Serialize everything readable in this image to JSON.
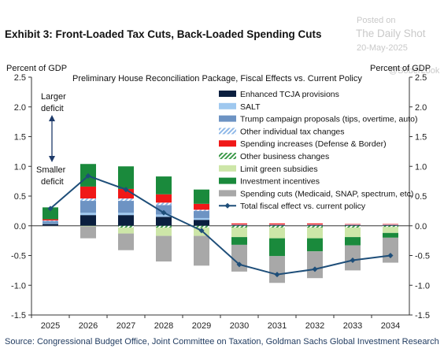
{
  "header": {
    "title": "Exhibit 3: Front-Loaded Tax Cuts, Back-Loaded Spending Cuts",
    "watermark": {
      "posted_on": "Posted on",
      "brand": "The Daily Shot",
      "date": "20-May-2025",
      "handle": "@SoberLook"
    }
  },
  "footer": {
    "source": "Source: Congressional Budget Office, Joint Committee on Taxation, Goldman Sachs Global Investment Research"
  },
  "annotations": {
    "larger_deficit": [
      "Larger",
      "deficit"
    ],
    "smaller_deficit": [
      "Smaller",
      "deficit"
    ]
  },
  "chart_data": {
    "type": "bar",
    "subtitle": "Preliminary House Reconciliation Package, Fiscal Effects vs. Current Policy",
    "ylabel_left": "Percent of GDP",
    "ylabel_right": "Percent of GDP",
    "ylim": [
      -1.5,
      2.5
    ],
    "yticks": [
      2.5,
      2.0,
      1.5,
      1.0,
      0.5,
      0.0,
      -0.5,
      -1.0,
      -1.5
    ],
    "ytick_labels": [
      "2.5",
      "2.0",
      "1.5",
      "1.0",
      "0.5",
      "0.0",
      "-0.5",
      "-1.0",
      "-1.5"
    ],
    "categories": [
      "2025",
      "2026",
      "2027",
      "2028",
      "2029",
      "2030",
      "2031",
      "2032",
      "2033",
      "2034"
    ],
    "legend_position": "top-right",
    "stacked": true,
    "series": [
      {
        "name": "Enhanced TCJA provisions",
        "color": "#0b1f3f",
        "pattern": "solid",
        "values": [
          0.03,
          0.18,
          0.18,
          0.15,
          0.1,
          0.01,
          0.01,
          0.01,
          0.01,
          0.01
        ]
      },
      {
        "name": "SALT",
        "color": "#9fc8ef",
        "pattern": "solid",
        "values": [
          0.01,
          0.04,
          0.04,
          0.04,
          0.03,
          0.01,
          0.01,
          0.01,
          0.01,
          0.01
        ]
      },
      {
        "name": "Trump campaign proposals (tips, overtime, auto)",
        "color": "#6d93c3",
        "pattern": "solid",
        "values": [
          0.04,
          0.2,
          0.2,
          0.16,
          0.12,
          0.0,
          0.0,
          0.0,
          0.0,
          0.0
        ]
      },
      {
        "name": "Other individual tax changes",
        "color": "#8fb8e8",
        "pattern": "hatch",
        "values": [
          0.01,
          0.04,
          0.04,
          0.04,
          0.02,
          0.0,
          0.0,
          0.0,
          0.0,
          0.0
        ]
      },
      {
        "name": "Spending increases (Defense & Border)",
        "color": "#f01818",
        "pattern": "solid",
        "values": [
          0.02,
          0.2,
          0.16,
          0.14,
          0.1,
          0.02,
          0.02,
          0.02,
          0.01,
          0.01
        ]
      },
      {
        "name": "Other business changes",
        "color": "#3d9a4a",
        "pattern": "hatch",
        "values": [
          0.0,
          0.0,
          -0.03,
          -0.03,
          -0.03,
          -0.03,
          -0.03,
          -0.03,
          -0.03,
          -0.02
        ]
      },
      {
        "name": "Limit green subsidies",
        "color": "#cde6a8",
        "pattern": "solid",
        "values": [
          0.0,
          -0.01,
          -0.1,
          -0.14,
          -0.14,
          -0.16,
          -0.18,
          -0.18,
          -0.16,
          -0.1
        ]
      },
      {
        "name": "Investment incentives",
        "color": "#1a8a3c",
        "pattern": "solid",
        "values": [
          0.2,
          0.38,
          0.38,
          0.3,
          0.24,
          -0.13,
          -0.3,
          -0.22,
          -0.14,
          -0.08
        ]
      },
      {
        "name": "Spending cuts (Medicaid, SNAP, spectrum, etc)",
        "color": "#a8a8a8",
        "pattern": "solid",
        "values": [
          -0.01,
          -0.2,
          -0.28,
          -0.43,
          -0.5,
          -0.45,
          -0.45,
          -0.45,
          -0.42,
          -0.42
        ]
      }
    ],
    "line": {
      "name": "Total fiscal effect vs. current policy",
      "color": "#1e4e79",
      "values": [
        0.29,
        0.84,
        0.61,
        0.22,
        -0.08,
        -0.65,
        -0.82,
        -0.73,
        -0.58,
        -0.5
      ]
    }
  }
}
